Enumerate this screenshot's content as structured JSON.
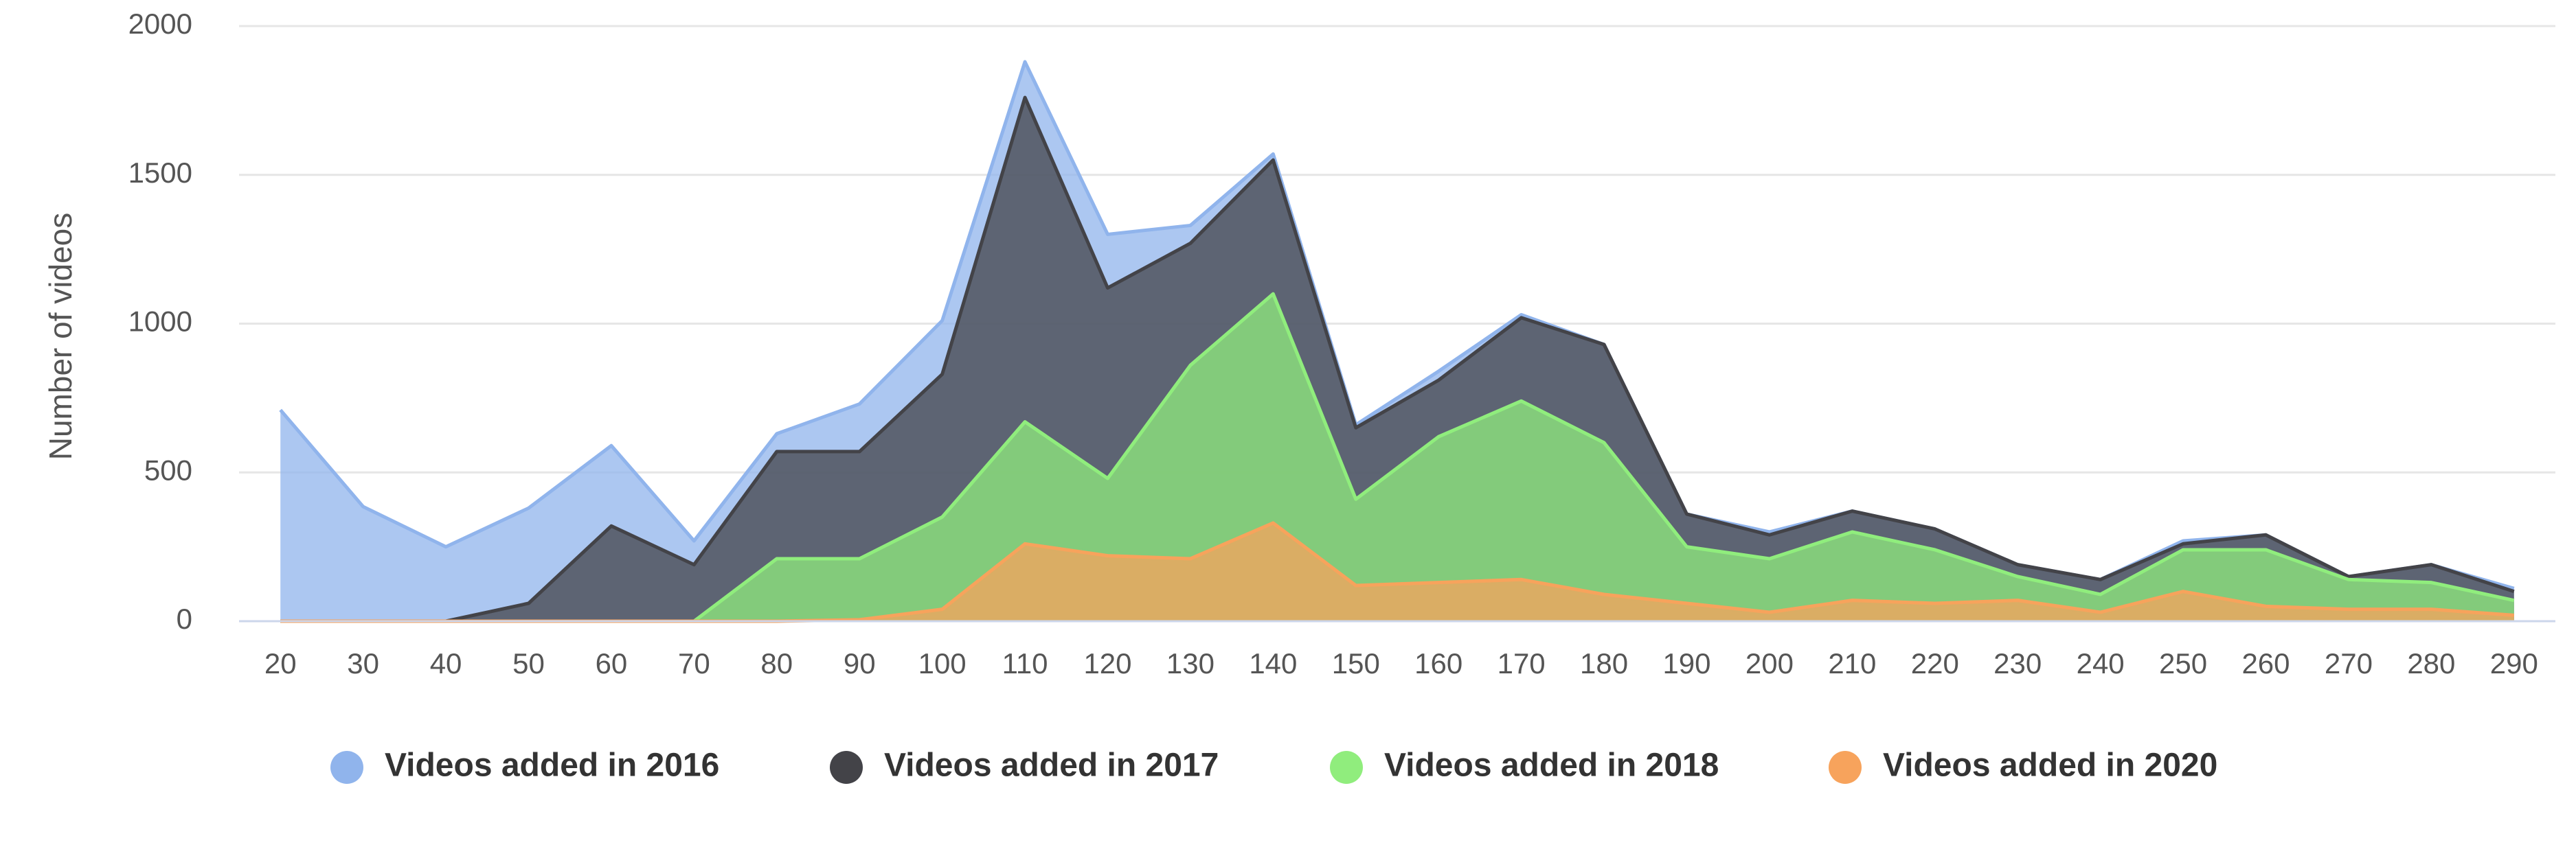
{
  "chart_data": {
    "type": "area",
    "y_label": "Number of videos",
    "x": [
      20,
      30,
      40,
      50,
      60,
      70,
      80,
      90,
      100,
      110,
      120,
      130,
      140,
      150,
      160,
      170,
      180,
      190,
      200,
      210,
      220,
      230,
      240,
      250,
      260,
      270,
      280,
      290
    ],
    "xlim": [
      15,
      295
    ],
    "xticks": [
      20,
      30,
      40,
      50,
      60,
      70,
      80,
      90,
      100,
      110,
      120,
      130,
      140,
      150,
      160,
      170,
      180,
      190,
      200,
      210,
      220,
      230,
      240,
      250,
      260,
      270,
      280,
      290
    ],
    "ylim": [
      0,
      2000
    ],
    "yticks": [
      0,
      500,
      1000,
      1500,
      2000
    ],
    "grid": true,
    "legend": "bottom",
    "series": [
      {
        "name": "Videos added in 2016",
        "color": "#90b4ec",
        "values": [
          710,
          385,
          250,
          380,
          590,
          270,
          630,
          730,
          1010,
          1880,
          1300,
          1330,
          1570,
          660,
          840,
          1030,
          930,
          360,
          300,
          370,
          310,
          190,
          140,
          270,
          290,
          150,
          190,
          110
        ]
      },
      {
        "name": "Videos added in 2017",
        "color": "#434348",
        "values": [
          0,
          0,
          0,
          60,
          320,
          190,
          570,
          570,
          830,
          1760,
          1120,
          1270,
          1550,
          650,
          810,
          1020,
          930,
          360,
          290,
          370,
          310,
          190,
          140,
          260,
          290,
          150,
          190,
          100
        ]
      },
      {
        "name": "Videos added in 2018",
        "color": "#90ed7d",
        "values": [
          0,
          0,
          0,
          0,
          0,
          0,
          210,
          210,
          350,
          670,
          480,
          860,
          1100,
          410,
          620,
          740,
          600,
          250,
          210,
          300,
          240,
          150,
          90,
          240,
          240,
          140,
          130,
          70
        ]
      },
      {
        "name": "Videos added in 2020",
        "color": "#f7a35c",
        "values": [
          0,
          0,
          0,
          0,
          0,
          0,
          0,
          5,
          40,
          260,
          220,
          210,
          330,
          120,
          130,
          140,
          90,
          60,
          30,
          70,
          60,
          70,
          30,
          100,
          50,
          40,
          40,
          20
        ]
      }
    ]
  }
}
